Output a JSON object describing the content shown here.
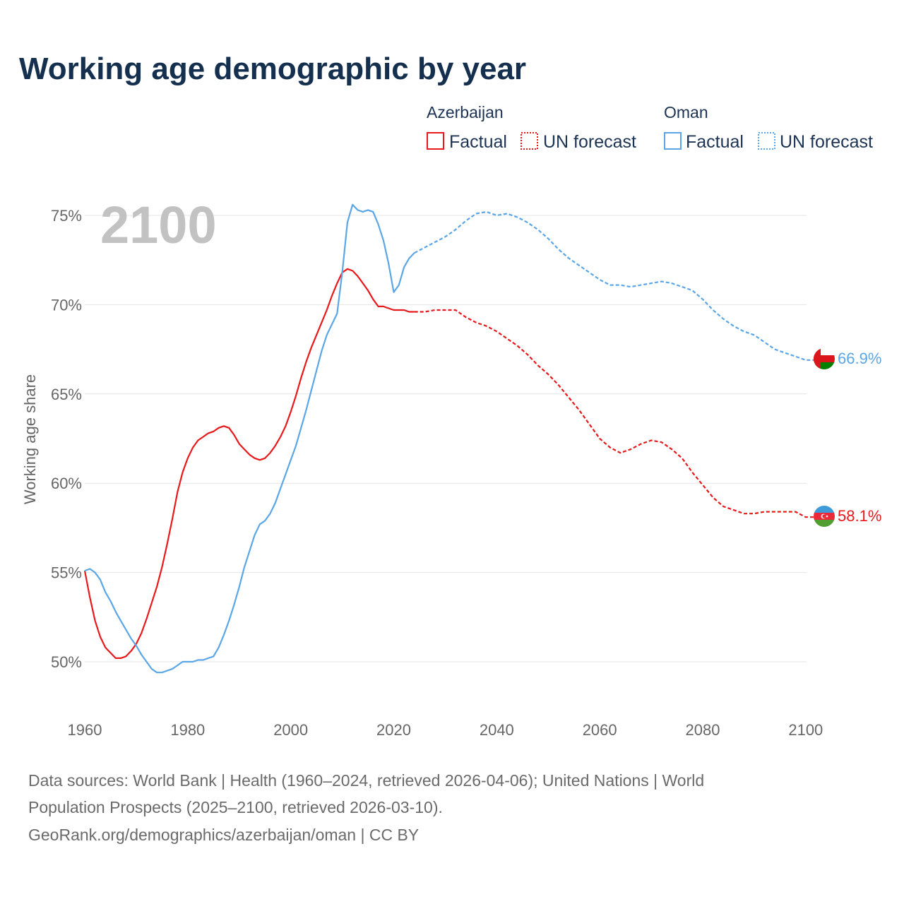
{
  "title": "Working age demographic by year",
  "year_label": "2100",
  "legend": {
    "azerbaijan": {
      "name": "Azerbaijan",
      "factual": "Factual",
      "forecast": "UN forecast"
    },
    "oman": {
      "name": "Oman",
      "factual": "Factual",
      "forecast": "UN forecast"
    }
  },
  "colors": {
    "azerbaijan": "#e8191b",
    "oman": "#5ba6e6"
  },
  "source": {
    "line1": "Data sources: World Bank | Health (1960–2024, retrieved 2026-04-06); United Nations | World",
    "line2": "Population Prospects (2025–2100, retrieved 2026-03-10).",
    "line3": "GeoRank.org/demographics/azerbaijan/oman | CC BY"
  },
  "chart_data": {
    "type": "line",
    "title": "Working age demographic by year",
    "xlabel": "",
    "ylabel": "Working age share",
    "xlim": [
      1960,
      2104
    ],
    "ylim": [
      48,
      77
    ],
    "x_ticks": [
      1960,
      1980,
      2000,
      2020,
      2040,
      2060,
      2080,
      2100
    ],
    "y_ticks": [
      {
        "value": 50,
        "label": "50%"
      },
      {
        "value": 55,
        "label": "55%"
      },
      {
        "value": 60,
        "label": "60%"
      },
      {
        "value": 65,
        "label": "65%"
      },
      {
        "value": 70,
        "label": "70%"
      },
      {
        "value": 75,
        "label": "75%"
      }
    ],
    "grid": true,
    "series": [
      {
        "name": "Azerbaijan",
        "key": "azerbaijan",
        "end_label": "58.1%",
        "factual": [
          [
            1960,
            55.1
          ],
          [
            1961,
            53.6
          ],
          [
            1962,
            52.3
          ],
          [
            1963,
            51.4
          ],
          [
            1964,
            50.8
          ],
          [
            1965,
            50.5
          ],
          [
            1966,
            50.2
          ],
          [
            1967,
            50.2
          ],
          [
            1968,
            50.3
          ],
          [
            1969,
            50.6
          ],
          [
            1970,
            51.0
          ],
          [
            1971,
            51.6
          ],
          [
            1972,
            52.4
          ],
          [
            1973,
            53.3
          ],
          [
            1974,
            54.2
          ],
          [
            1975,
            55.3
          ],
          [
            1976,
            56.6
          ],
          [
            1977,
            58.0
          ],
          [
            1978,
            59.5
          ],
          [
            1979,
            60.6
          ],
          [
            1980,
            61.4
          ],
          [
            1981,
            62.0
          ],
          [
            1982,
            62.4
          ],
          [
            1983,
            62.6
          ],
          [
            1984,
            62.8
          ],
          [
            1985,
            62.9
          ],
          [
            1986,
            63.1
          ],
          [
            1987,
            63.2
          ],
          [
            1988,
            63.1
          ],
          [
            1989,
            62.7
          ],
          [
            1990,
            62.2
          ],
          [
            1991,
            61.9
          ],
          [
            1992,
            61.6
          ],
          [
            1993,
            61.4
          ],
          [
            1994,
            61.3
          ],
          [
            1995,
            61.4
          ],
          [
            1996,
            61.7
          ],
          [
            1997,
            62.1
          ],
          [
            1998,
            62.6
          ],
          [
            1999,
            63.2
          ],
          [
            2000,
            64.0
          ],
          [
            2001,
            64.9
          ],
          [
            2002,
            65.9
          ],
          [
            2003,
            66.8
          ],
          [
            2004,
            67.6
          ],
          [
            2005,
            68.3
          ],
          [
            2006,
            69.0
          ],
          [
            2007,
            69.7
          ],
          [
            2008,
            70.5
          ],
          [
            2009,
            71.2
          ],
          [
            2010,
            71.8
          ],
          [
            2011,
            72.0
          ],
          [
            2012,
            71.9
          ],
          [
            2013,
            71.6
          ],
          [
            2014,
            71.2
          ],
          [
            2015,
            70.8
          ],
          [
            2016,
            70.3
          ],
          [
            2017,
            69.9
          ],
          [
            2018,
            69.9
          ],
          [
            2019,
            69.8
          ],
          [
            2020,
            69.7
          ],
          [
            2021,
            69.7
          ],
          [
            2022,
            69.7
          ],
          [
            2023,
            69.6
          ],
          [
            2024,
            69.6
          ]
        ],
        "forecast": [
          [
            2024,
            69.6
          ],
          [
            2026,
            69.6
          ],
          [
            2028,
            69.7
          ],
          [
            2030,
            69.7
          ],
          [
            2032,
            69.7
          ],
          [
            2034,
            69.3
          ],
          [
            2036,
            69.0
          ],
          [
            2038,
            68.8
          ],
          [
            2040,
            68.5
          ],
          [
            2042,
            68.1
          ],
          [
            2044,
            67.7
          ],
          [
            2046,
            67.2
          ],
          [
            2048,
            66.6
          ],
          [
            2050,
            66.1
          ],
          [
            2052,
            65.5
          ],
          [
            2054,
            64.8
          ],
          [
            2056,
            64.1
          ],
          [
            2058,
            63.3
          ],
          [
            2060,
            62.5
          ],
          [
            2062,
            62.0
          ],
          [
            2064,
            61.7
          ],
          [
            2066,
            61.9
          ],
          [
            2068,
            62.2
          ],
          [
            2070,
            62.4
          ],
          [
            2072,
            62.3
          ],
          [
            2074,
            61.9
          ],
          [
            2076,
            61.4
          ],
          [
            2078,
            60.6
          ],
          [
            2080,
            59.9
          ],
          [
            2082,
            59.2
          ],
          [
            2084,
            58.7
          ],
          [
            2086,
            58.5
          ],
          [
            2088,
            58.3
          ],
          [
            2090,
            58.3
          ],
          [
            2092,
            58.4
          ],
          [
            2094,
            58.4
          ],
          [
            2096,
            58.4
          ],
          [
            2098,
            58.4
          ],
          [
            2100,
            58.1
          ],
          [
            2103,
            58.1
          ]
        ]
      },
      {
        "name": "Oman",
        "key": "oman",
        "end_label": "66.9%",
        "factual": [
          [
            1960,
            55.1
          ],
          [
            1961,
            55.2
          ],
          [
            1962,
            55.0
          ],
          [
            1963,
            54.6
          ],
          [
            1964,
            53.9
          ],
          [
            1965,
            53.4
          ],
          [
            1966,
            52.8
          ],
          [
            1967,
            52.3
          ],
          [
            1968,
            51.8
          ],
          [
            1969,
            51.3
          ],
          [
            1970,
            50.9
          ],
          [
            1971,
            50.4
          ],
          [
            1972,
            50.0
          ],
          [
            1973,
            49.6
          ],
          [
            1974,
            49.4
          ],
          [
            1975,
            49.4
          ],
          [
            1976,
            49.5
          ],
          [
            1977,
            49.6
          ],
          [
            1978,
            49.8
          ],
          [
            1979,
            50.0
          ],
          [
            1980,
            50.0
          ],
          [
            1981,
            50.0
          ],
          [
            1982,
            50.1
          ],
          [
            1983,
            50.1
          ],
          [
            1984,
            50.2
          ],
          [
            1985,
            50.3
          ],
          [
            1986,
            50.8
          ],
          [
            1987,
            51.5
          ],
          [
            1988,
            52.3
          ],
          [
            1989,
            53.2
          ],
          [
            1990,
            54.2
          ],
          [
            1991,
            55.3
          ],
          [
            1992,
            56.2
          ],
          [
            1993,
            57.1
          ],
          [
            1994,
            57.7
          ],
          [
            1995,
            57.9
          ],
          [
            1996,
            58.3
          ],
          [
            1997,
            58.9
          ],
          [
            1998,
            59.7
          ],
          [
            1999,
            60.5
          ],
          [
            2000,
            61.3
          ],
          [
            2001,
            62.1
          ],
          [
            2002,
            63.1
          ],
          [
            2003,
            64.1
          ],
          [
            2004,
            65.2
          ],
          [
            2005,
            66.3
          ],
          [
            2006,
            67.4
          ],
          [
            2007,
            68.3
          ],
          [
            2008,
            68.9
          ],
          [
            2009,
            69.5
          ],
          [
            2010,
            71.8
          ],
          [
            2011,
            74.6
          ],
          [
            2012,
            75.6
          ],
          [
            2013,
            75.3
          ],
          [
            2014,
            75.2
          ],
          [
            2015,
            75.3
          ],
          [
            2016,
            75.2
          ],
          [
            2017,
            74.5
          ],
          [
            2018,
            73.6
          ],
          [
            2019,
            72.3
          ],
          [
            2020,
            70.7
          ],
          [
            2021,
            71.1
          ],
          [
            2022,
            72.1
          ],
          [
            2023,
            72.6
          ],
          [
            2024,
            72.9
          ]
        ],
        "forecast": [
          [
            2024,
            72.9
          ],
          [
            2026,
            73.2
          ],
          [
            2028,
            73.5
          ],
          [
            2030,
            73.8
          ],
          [
            2032,
            74.2
          ],
          [
            2034,
            74.7
          ],
          [
            2036,
            75.1
          ],
          [
            2038,
            75.2
          ],
          [
            2040,
            75.0
          ],
          [
            2042,
            75.1
          ],
          [
            2044,
            74.9
          ],
          [
            2046,
            74.6
          ],
          [
            2048,
            74.2
          ],
          [
            2050,
            73.7
          ],
          [
            2052,
            73.1
          ],
          [
            2054,
            72.6
          ],
          [
            2056,
            72.2
          ],
          [
            2058,
            71.8
          ],
          [
            2060,
            71.4
          ],
          [
            2062,
            71.1
          ],
          [
            2064,
            71.1
          ],
          [
            2066,
            71.0
          ],
          [
            2068,
            71.1
          ],
          [
            2070,
            71.2
          ],
          [
            2072,
            71.3
          ],
          [
            2074,
            71.2
          ],
          [
            2076,
            71.0
          ],
          [
            2078,
            70.8
          ],
          [
            2080,
            70.3
          ],
          [
            2082,
            69.7
          ],
          [
            2084,
            69.2
          ],
          [
            2086,
            68.8
          ],
          [
            2088,
            68.5
          ],
          [
            2090,
            68.3
          ],
          [
            2092,
            67.9
          ],
          [
            2094,
            67.5
          ],
          [
            2096,
            67.3
          ],
          [
            2098,
            67.1
          ],
          [
            2100,
            66.9
          ],
          [
            2103,
            66.9
          ]
        ]
      }
    ]
  }
}
